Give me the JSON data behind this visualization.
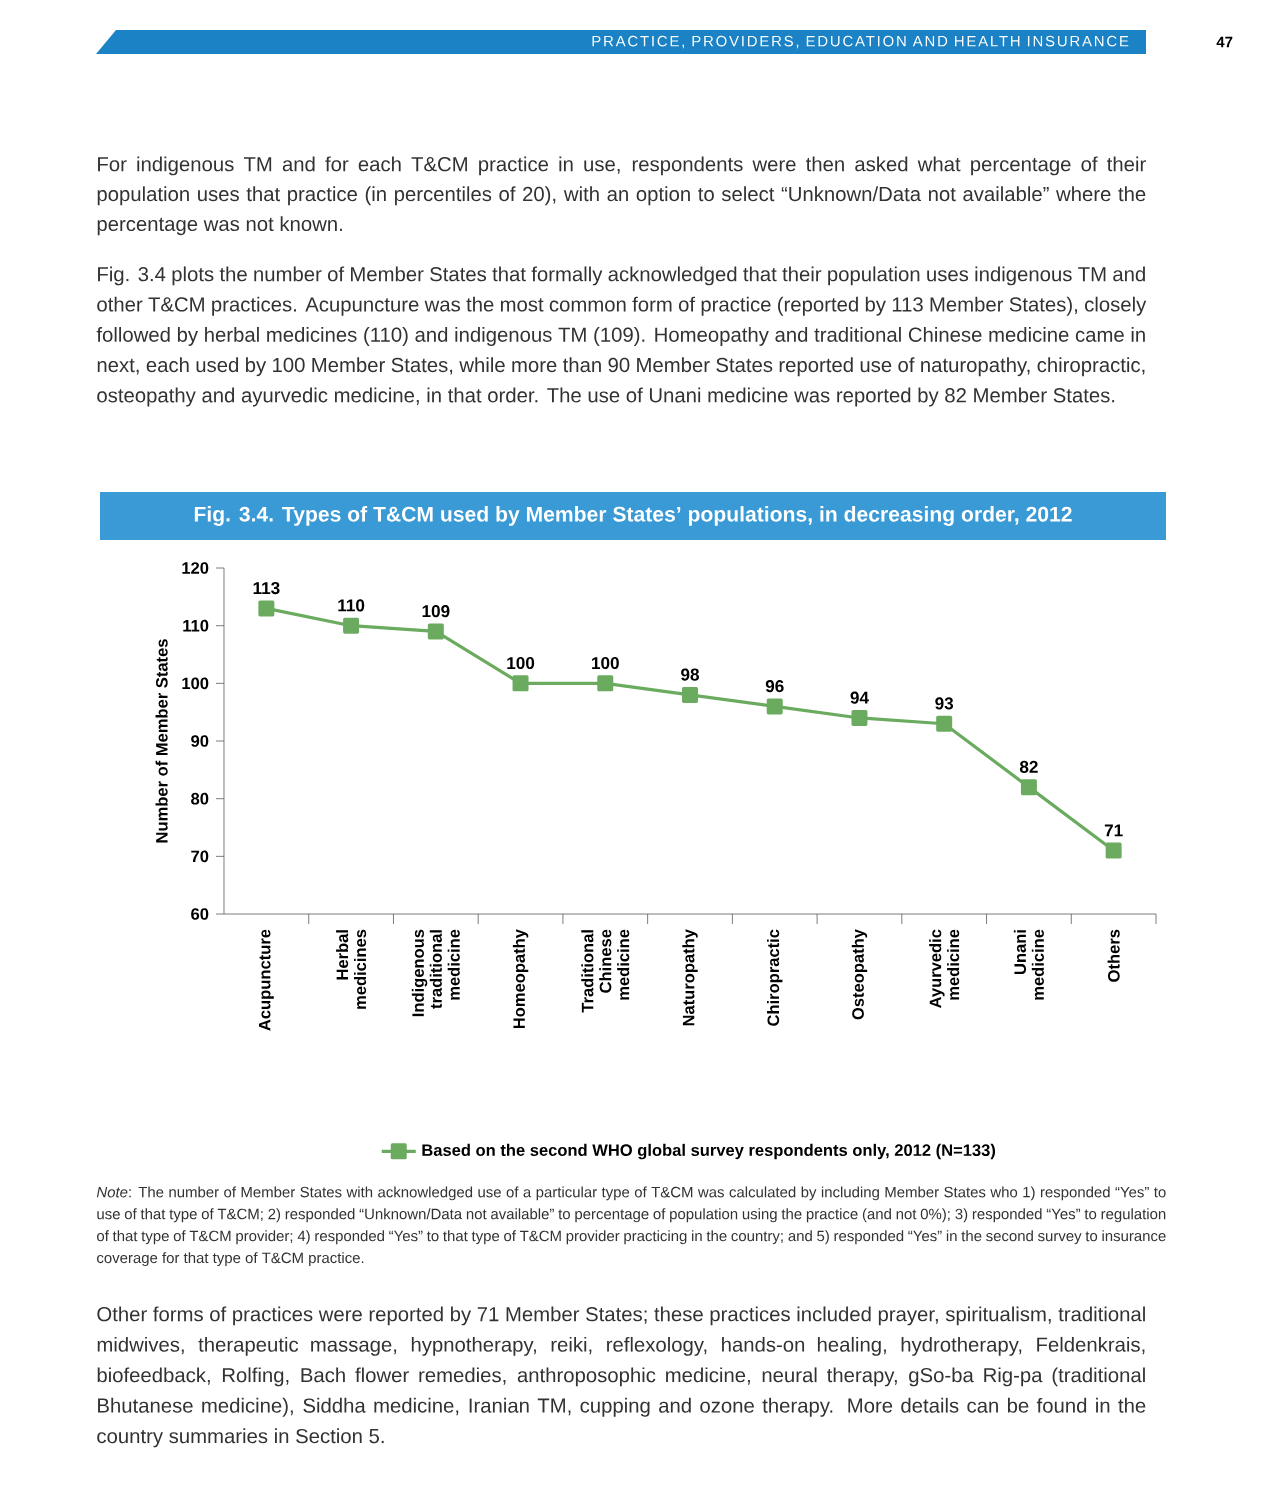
{
  "chart_data": {
    "type": "line",
    "title": "Fig. 3.4. Types of T&CM used by Member States’ populations, in decreasing order, 2012",
    "ylabel": "Number of Member States",
    "categories": [
      "Acupuncture",
      "Herbal medicines",
      "Indigenous traditional medicine",
      "Homeopathy",
      "Traditional Chinese medicine",
      "Naturopathy",
      "Chiropractic",
      "Osteopathy",
      "Ayurvedic medicine",
      "Unani medicine",
      "Others"
    ],
    "series": [
      {
        "name": "Based on the second WHO global survey respondents only, 2012 (N=133)",
        "color": "#6aab5f",
        "values": [
          113,
          110,
          109,
          100,
          100,
          98,
          96,
          94,
          93,
          82,
          71
        ]
      }
    ],
    "ylim": [
      60,
      120
    ],
    "yticks": [
      60,
      70,
      80,
      90,
      100,
      110,
      120
    ],
    "marker": "square",
    "data_labels": true,
    "legend": "bottom",
    "grid": false,
    "annotations": [
      "PRACTICE, PROVIDERS, EDUCATION AND HEALTH INSURANCE",
      "47",
      "For indigenous TM and for each T&CM practice in use, respondents were then asked what percentage of their population uses that practice (in percentiles of 20), with an option to select “Unknown/Data not available” where the percentage was not known.",
      "Fig. 3.4 plots the number of Member States that formally acknowledged that their population uses indigenous TM and other T&CM practices. Acupuncture was the most common form of practice (reported by 113 Member States), closely followed by herbal medicines (110) and indigenous TM (109). Homeopathy and traditional Chinese medicine came in next, each used by 100 Member States, while more than 90 Member States reported use of naturopathy, chiropractic, osteopathy and ayurvedic medicine, in that order. The use of Unani medicine was reported by 82 Member States.",
      "*Note*: The number of Member States with acknowledged use of a particular type of T&CM was calculated by including Member States who 1) responded “Yes” to use of that type of T&CM; 2) responded “Unknown/Data not available” to percentage of population using the practice (and not 0%); 3) responded “Yes” to regulation of that type of T&CM provider; 4) responded “Yes” to that type of T&CM provider practicing in the country; and 5) responded “Yes” in the second survey to insurance coverage for that type of T&CM practice.",
      "Other forms of practices were reported by 71 Member States; these practices included prayer, spiritualism, traditional midwives, therapeutic massage, hypnotherapy, reiki, reflexology, hands-on healing, hydrotherapy, Feldenkrais, biofeedback, Rolfing, Bach flower remedies, anthroposophic medicine, neural therapy, gSo-ba Rig-pa (traditional Bhutanese medicine), Siddha medicine, Iranian TM, cupping and ozone therapy. More details can be found in the country summaries in Section 5."
    ]
  }
}
